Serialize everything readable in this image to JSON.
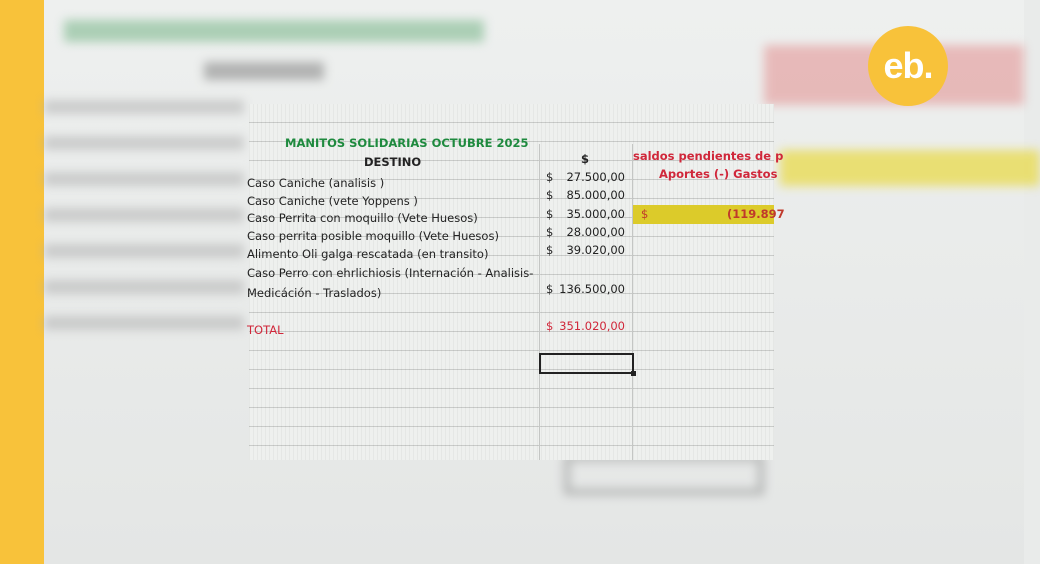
{
  "brand": {
    "logo_text": "eb.",
    "accent": "#f8c23a"
  },
  "sheet": {
    "title": "MANITOS SOLIDARIAS OCTUBRE 2025",
    "col_destino": "DESTINO",
    "col_amount": "$",
    "col_saldos": "saldos pendientes de p",
    "col_aportes": "Aportes (-) Gastos",
    "rows": [
      {
        "destino": "Caso Caniche (analisis )",
        "currency": "$",
        "amount": "27.500,00"
      },
      {
        "destino": "Caso Caniche (vete Yoppens )",
        "currency": "$",
        "amount": "85.000,00"
      },
      {
        "destino": "Caso Perrita con moquillo  (Vete Huesos)",
        "currency": "$",
        "amount": "35.000,00"
      },
      {
        "destino": "Caso perrita posible moquillo (Vete Huesos)",
        "currency": "$",
        "amount": "28.000,00"
      },
      {
        "destino": "Alimento Oli galga rescatada (en transito)",
        "currency": "$",
        "amount": "39.020,00"
      },
      {
        "destino": "Caso Perro con ehrlichiosis (Internación - Analisis-",
        "destino2": "Medicáción - Traslados)",
        "currency": "$",
        "amount": "136.500,00"
      }
    ],
    "saldo": {
      "currency": "$",
      "value": "(119.897"
    },
    "total": {
      "label": "TOTAL",
      "currency": "$",
      "amount": "351.020,00"
    }
  }
}
